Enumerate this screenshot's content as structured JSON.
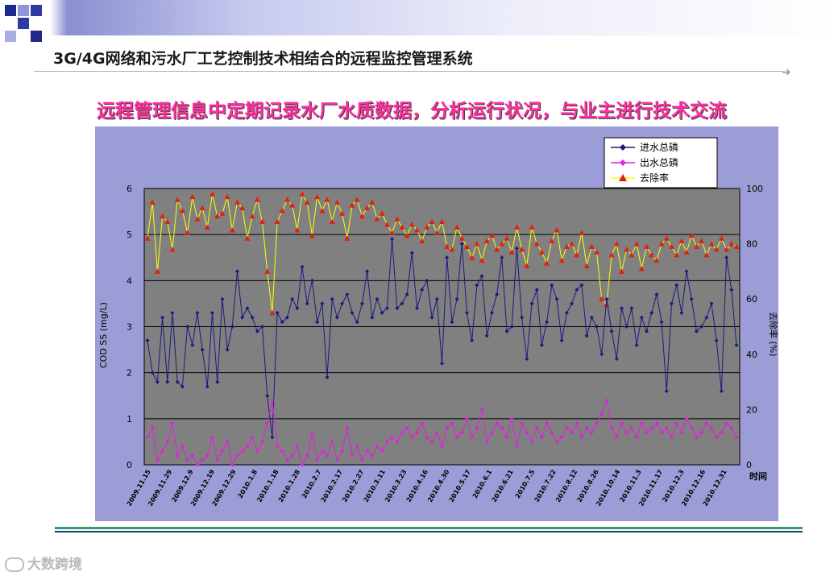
{
  "header": {
    "title": "3G/4G网络和污水厂工艺控制技术相结合的远程监控管理系统"
  },
  "subtitle": "远程管理信息中定期记录水厂水质数据，分析运行状况，与业主进行技术交流",
  "watermark": "大数跨境",
  "colors": {
    "plot_bg": "#808080",
    "panel_bg": "#9c9cd6",
    "series_in": "#1a1a80",
    "series_out": "#e020e0",
    "series_rate_line": "#ffff00",
    "series_rate_marker": "#e02010"
  },
  "chart_data": {
    "type": "line",
    "ylabel_left": "COD SS (mg/L)",
    "ylabel_right": "去除率 (%)",
    "xlabel": "时间",
    "ylim_left": [
      0,
      6
    ],
    "ylim_right": [
      0,
      100
    ],
    "yticks_left": [
      "0",
      "1",
      "2",
      "3",
      "4",
      "5",
      "6"
    ],
    "yticks_right": [
      "0",
      "20",
      "40",
      "60",
      "80",
      "100"
    ],
    "grid": true,
    "legend_position": "top-right",
    "x_tick_labels": [
      "2009.11.15",
      "2009.11.29",
      "2009.12.9",
      "2009.12.19",
      "2009.12.29",
      "2010.1.8",
      "2010.1.18",
      "2010.1.28",
      "2010.2.7",
      "2010.2.17",
      "2010.2.27",
      "2010.3.11",
      "2010.3.23",
      "2010.4.16",
      "2010.4.30",
      "2010.5.17",
      "2010.6.1",
      "2010.6.21",
      "2010.7.5",
      "2010.7.22",
      "2010.8.12",
      "2010.8.26",
      "2010.10.14",
      "2010.11.3",
      "2010.11.17",
      "2010.12.3",
      "2010.12.16",
      "2010.12.31"
    ],
    "series": [
      {
        "name": "进水总磷",
        "axis": "left",
        "values": [
          2.7,
          2.0,
          1.8,
          3.2,
          1.8,
          3.3,
          1.8,
          1.7,
          3.0,
          2.6,
          3.3,
          2.5,
          1.7,
          3.3,
          1.8,
          3.6,
          2.5,
          3.0,
          4.2,
          3.2,
          3.4,
          3.2,
          2.9,
          3.0,
          1.5,
          0.6,
          3.3,
          3.1,
          3.2,
          3.6,
          3.4,
          4.3,
          3.5,
          4.0,
          3.1,
          3.5,
          1.9,
          3.6,
          3.2,
          3.5,
          3.7,
          3.3,
          3.1,
          3.5,
          4.2,
          3.2,
          3.6,
          3.3,
          3.4,
          4.9,
          3.4,
          3.5,
          3.7,
          4.6,
          3.4,
          3.8,
          4.0,
          3.2,
          3.6,
          2.2,
          4.5,
          3.1,
          3.6,
          4.8,
          3.3,
          2.7,
          3.9,
          4.1,
          2.8,
          3.3,
          3.7,
          4.5,
          2.9,
          3.0,
          4.7,
          3.2,
          2.3,
          3.5,
          3.8,
          2.6,
          3.1,
          3.9,
          3.6,
          2.7,
          3.3,
          3.5,
          3.8,
          3.9,
          2.8,
          3.2,
          3.0,
          2.4,
          3.6,
          2.9,
          2.3,
          3.4,
          3.0,
          3.4,
          2.6,
          3.2,
          2.9,
          3.3,
          3.7,
          3.1,
          1.6,
          3.5,
          3.9,
          3.3,
          4.2,
          3.6,
          2.9,
          3.0,
          3.2,
          3.5,
          2.7,
          1.6,
          4.5,
          3.8,
          2.6
        ]
      },
      {
        "name": "出水总磷",
        "axis": "left",
        "values": [
          0.6,
          0.8,
          0.1,
          0.3,
          0.5,
          0.9,
          0.2,
          0.4,
          0.1,
          0.2,
          0.0,
          0.1,
          0.2,
          0.6,
          0.1,
          0.3,
          0.5,
          0.0,
          0.2,
          0.3,
          0.4,
          0.6,
          0.3,
          0.5,
          0.9,
          1.4,
          0.4,
          0.3,
          0.1,
          0.2,
          0.4,
          0.0,
          0.2,
          0.7,
          0.1,
          0.3,
          0.2,
          0.5,
          0.1,
          0.3,
          0.8,
          0.2,
          0.4,
          0.1,
          0.3,
          0.2,
          0.4,
          0.3,
          0.5,
          0.6,
          0.5,
          0.7,
          0.8,
          0.6,
          0.7,
          0.9,
          0.6,
          0.5,
          0.7,
          0.4,
          0.8,
          0.9,
          0.6,
          0.7,
          1.0,
          0.6,
          0.8,
          1.2,
          0.5,
          0.7,
          0.9,
          0.8,
          0.6,
          1.0,
          0.4,
          0.9,
          0.7,
          0.5,
          0.8,
          0.6,
          0.9,
          0.7,
          0.5,
          0.6,
          0.8,
          0.7,
          0.9,
          0.6,
          0.8,
          0.7,
          0.9,
          1.1,
          1.4,
          0.8,
          0.6,
          0.9,
          0.7,
          0.8,
          0.6,
          0.9,
          0.7,
          0.8,
          0.9,
          0.7,
          0.8,
          0.6,
          0.9,
          0.7,
          1.0,
          0.8,
          0.6,
          0.7,
          0.9,
          0.8,
          0.6,
          0.7,
          0.9,
          0.8,
          0.6
        ]
      },
      {
        "name": "去除率",
        "axis": "right",
        "values": [
          82,
          95,
          70,
          90,
          88,
          78,
          96,
          92,
          84,
          97,
          89,
          93,
          86,
          98,
          90,
          91,
          97,
          85,
          95,
          93,
          82,
          90,
          96,
          88,
          70,
          55,
          88,
          92,
          96,
          94,
          85,
          98,
          95,
          83,
          97,
          92,
          96,
          88,
          95,
          91,
          82,
          94,
          96,
          90,
          93,
          95,
          89,
          91,
          87,
          84,
          89,
          86,
          83,
          87,
          85,
          81,
          86,
          88,
          84,
          88,
          79,
          78,
          86,
          82,
          79,
          75,
          80,
          74,
          81,
          83,
          78,
          80,
          82,
          77,
          86,
          78,
          72,
          86,
          80,
          77,
          73,
          81,
          85,
          74,
          79,
          80,
          76,
          84,
          72,
          79,
          77,
          60,
          58,
          76,
          80,
          70,
          78,
          76,
          80,
          71,
          79,
          76,
          74,
          80,
          82,
          79,
          76,
          81,
          77,
          83,
          79,
          81,
          76,
          80,
          78,
          82,
          78,
          80,
          79
        ]
      }
    ]
  }
}
